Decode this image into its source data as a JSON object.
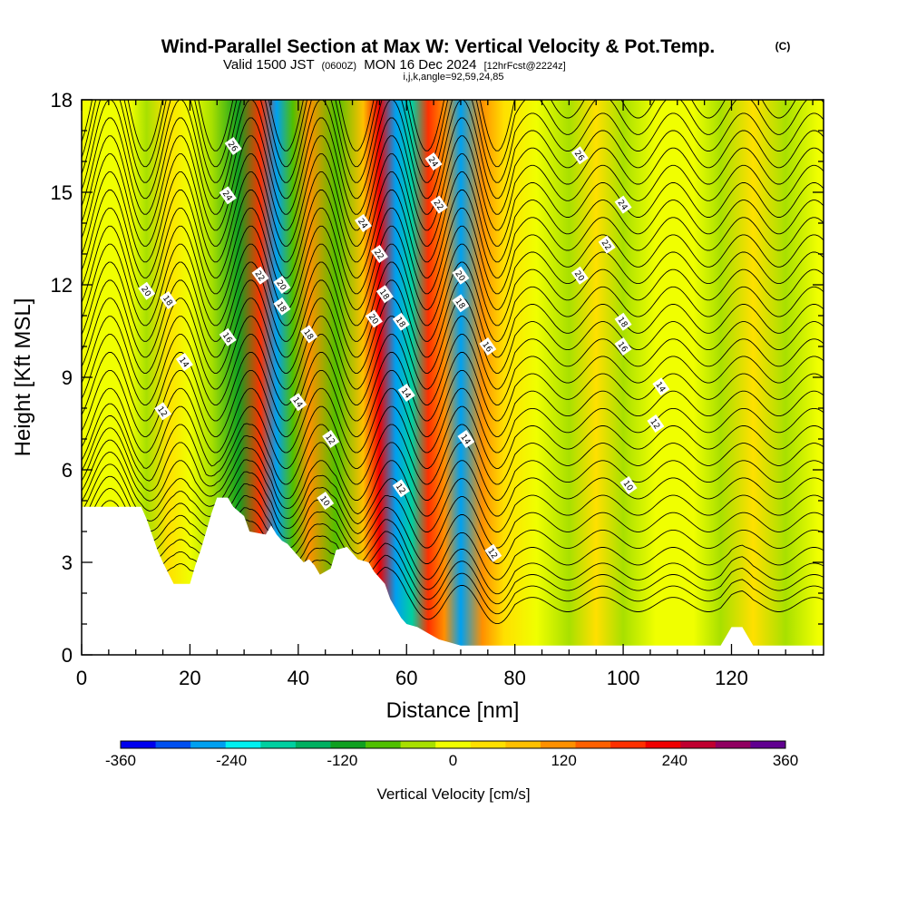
{
  "title": {
    "main": "Wind-Parallel Section at Max W: Vertical Velocity & Pot.Temp.",
    "copyright": "(C)",
    "valid_prefix": "Valid 1500 JST",
    "valid_zulu": "(0600Z)",
    "valid_date": "MON 16 Dec 2024",
    "valid_fcst": "[12hrFcst@2224z]",
    "indices": "i,j,k,angle=92,59,24,85"
  },
  "chart_data": {
    "type": "heatmap",
    "xlabel": "Distance [nm]",
    "ylabel": "Height [Kft MSL]",
    "xlim": [
      0,
      137
    ],
    "ylim": [
      0,
      18
    ],
    "x_ticks": [
      0,
      20,
      40,
      60,
      80,
      100,
      120
    ],
    "y_ticks": [
      0,
      3,
      6,
      9,
      12,
      15,
      18
    ],
    "x_tick_labels": [
      "0",
      "20",
      "40",
      "60",
      "80",
      "100",
      "120"
    ],
    "y_tick_labels": [
      "0",
      "3",
      "6",
      "9",
      "12",
      "15",
      "18"
    ],
    "colorbar": {
      "title": "Vertical Velocity [cm/s]",
      "min": -360,
      "max": 360,
      "step": 40,
      "tick_values": [
        -360,
        -240,
        -120,
        0,
        120,
        240,
        360
      ],
      "tick_labels": [
        "-360",
        "-240",
        "-120",
        "0",
        "120",
        "240",
        "360"
      ],
      "colors": [
        "#0000ee",
        "#0050f0",
        "#00a0f0",
        "#00f0f0",
        "#00d0a0",
        "#00b060",
        "#10a020",
        "#50c000",
        "#a8e000",
        "#f0ff00",
        "#ffe000",
        "#ffc000",
        "#ff9000",
        "#ff6000",
        "#ff3000",
        "#f00000",
        "#c00030",
        "#900060",
        "#600090"
      ]
    },
    "vertical_velocity_bands": [
      {
        "x": 4,
        "value": 30
      },
      {
        "x": 9,
        "value": 10
      },
      {
        "x": 12,
        "value": -30
      },
      {
        "x": 16,
        "value": 60
      },
      {
        "x": 20,
        "value": 0
      },
      {
        "x": 24,
        "value": -30
      },
      {
        "x": 29,
        "value": -120
      },
      {
        "x": 33,
        "value": 200
      },
      {
        "x": 36,
        "value": -280
      },
      {
        "x": 39,
        "value": -60
      },
      {
        "x": 42,
        "value": 140
      },
      {
        "x": 47,
        "value": -80
      },
      {
        "x": 52,
        "value": 80
      },
      {
        "x": 55,
        "value": 260
      },
      {
        "x": 58,
        "value": -260
      },
      {
        "x": 61,
        "value": -200
      },
      {
        "x": 64,
        "value": 200
      },
      {
        "x": 67,
        "value": 140
      },
      {
        "x": 70,
        "value": -260
      },
      {
        "x": 74,
        "value": 140
      },
      {
        "x": 78,
        "value": 60
      },
      {
        "x": 84,
        "value": 10
      },
      {
        "x": 90,
        "value": -40
      },
      {
        "x": 95,
        "value": 40
      },
      {
        "x": 100,
        "value": -40
      },
      {
        "x": 106,
        "value": 30
      },
      {
        "x": 113,
        "value": 0
      },
      {
        "x": 118,
        "value": -40
      },
      {
        "x": 124,
        "value": 40
      },
      {
        "x": 130,
        "value": -40
      },
      {
        "x": 136,
        "value": 20
      }
    ],
    "terrain": [
      [
        0,
        4.8
      ],
      [
        11,
        4.8
      ],
      [
        12,
        4.4
      ],
      [
        14,
        3.4
      ],
      [
        15,
        3.0
      ],
      [
        17,
        2.3
      ],
      [
        20,
        2.3
      ],
      [
        21,
        2.9
      ],
      [
        22,
        3.4
      ],
      [
        23,
        4.0
      ],
      [
        24,
        4.6
      ],
      [
        25,
        5.1
      ],
      [
        27,
        5.1
      ],
      [
        28,
        4.8
      ],
      [
        30,
        4.5
      ],
      [
        31,
        4.0
      ],
      [
        34,
        3.9
      ],
      [
        35,
        4.2
      ],
      [
        36,
        3.9
      ],
      [
        37,
        3.7
      ],
      [
        38,
        3.6
      ],
      [
        39,
        3.4
      ],
      [
        40,
        3.2
      ],
      [
        41,
        3.0
      ],
      [
        42,
        3.1
      ],
      [
        43,
        2.9
      ],
      [
        44,
        2.6
      ],
      [
        46,
        2.8
      ],
      [
        47,
        3.4
      ],
      [
        49,
        3.5
      ],
      [
        50,
        3.3
      ],
      [
        51,
        3.1
      ],
      [
        53,
        3.0
      ],
      [
        54,
        2.7
      ],
      [
        56,
        2.3
      ],
      [
        57,
        1.8
      ],
      [
        58,
        1.5
      ],
      [
        59,
        1.2
      ],
      [
        60,
        1.0
      ],
      [
        62,
        0.9
      ],
      [
        64,
        0.7
      ],
      [
        66,
        0.5
      ],
      [
        68,
        0.4
      ],
      [
        70,
        0.3
      ],
      [
        75,
        0.3
      ],
      [
        90,
        0.3
      ],
      [
        118,
        0.3
      ],
      [
        119,
        0.6
      ],
      [
        120,
        0.9
      ],
      [
        122,
        0.9
      ],
      [
        123,
        0.6
      ],
      [
        124,
        0.3
      ],
      [
        137,
        0.3
      ]
    ],
    "theta_contours": [
      {
        "label": "10",
        "level": 10,
        "h": 5.0
      },
      {
        "label": "12",
        "level": 12,
        "h": 7.8
      },
      {
        "label": "14",
        "level": 14,
        "h": 9.3
      },
      {
        "label": "16",
        "level": 16,
        "h": 10.3
      },
      {
        "label": "18",
        "level": 18,
        "h": 11.3
      },
      {
        "label": "20",
        "level": 20,
        "h": 11.8
      },
      {
        "label": "22",
        "level": 22,
        "h": 13.2
      },
      {
        "label": "24",
        "level": 24,
        "h": 15.0
      },
      {
        "label": "26",
        "level": 26,
        "h": 16.5
      }
    ],
    "contour_labels": [
      {
        "text": "26",
        "x": 28,
        "y": 16.5
      },
      {
        "text": "24",
        "x": 27,
        "y": 14.9
      },
      {
        "text": "22",
        "x": 33,
        "y": 12.3
      },
      {
        "text": "20",
        "x": 37,
        "y": 12.0
      },
      {
        "text": "18",
        "x": 37,
        "y": 11.3
      },
      {
        "text": "18",
        "x": 42,
        "y": 10.4
      },
      {
        "text": "14",
        "x": 40,
        "y": 8.2
      },
      {
        "text": "12",
        "x": 46,
        "y": 7.0
      },
      {
        "text": "10",
        "x": 45,
        "y": 5.0
      },
      {
        "text": "24",
        "x": 52,
        "y": 14.0
      },
      {
        "text": "22",
        "x": 55,
        "y": 13.0
      },
      {
        "text": "18",
        "x": 56,
        "y": 11.7
      },
      {
        "text": "20",
        "x": 54,
        "y": 10.9
      },
      {
        "text": "18",
        "x": 59,
        "y": 10.8
      },
      {
        "text": "14",
        "x": 60,
        "y": 8.5
      },
      {
        "text": "12",
        "x": 59,
        "y": 5.4
      },
      {
        "text": "24",
        "x": 65,
        "y": 16.0
      },
      {
        "text": "22",
        "x": 66,
        "y": 14.6
      },
      {
        "text": "20",
        "x": 70,
        "y": 12.3
      },
      {
        "text": "18",
        "x": 70,
        "y": 11.4
      },
      {
        "text": "16",
        "x": 75,
        "y": 10.0
      },
      {
        "text": "14",
        "x": 71,
        "y": 7.0
      },
      {
        "text": "12",
        "x": 76,
        "y": 3.3
      },
      {
        "text": "26",
        "x": 92,
        "y": 16.2
      },
      {
        "text": "24",
        "x": 100,
        "y": 14.6
      },
      {
        "text": "22",
        "x": 97,
        "y": 13.3
      },
      {
        "text": "20",
        "x": 92,
        "y": 12.3
      },
      {
        "text": "18",
        "x": 100,
        "y": 10.8
      },
      {
        "text": "16",
        "x": 100,
        "y": 10.0
      },
      {
        "text": "14",
        "x": 107,
        "y": 8.7
      },
      {
        "text": "12",
        "x": 106,
        "y": 7.5
      },
      {
        "text": "10",
        "x": 101,
        "y": 5.5
      },
      {
        "text": "20",
        "x": 12,
        "y": 11.8
      },
      {
        "text": "18",
        "x": 16,
        "y": 11.5
      },
      {
        "text": "16",
        "x": 27,
        "y": 10.3
      },
      {
        "text": "14",
        "x": 19,
        "y": 9.5
      },
      {
        "text": "12",
        "x": 15,
        "y": 7.9
      }
    ]
  }
}
